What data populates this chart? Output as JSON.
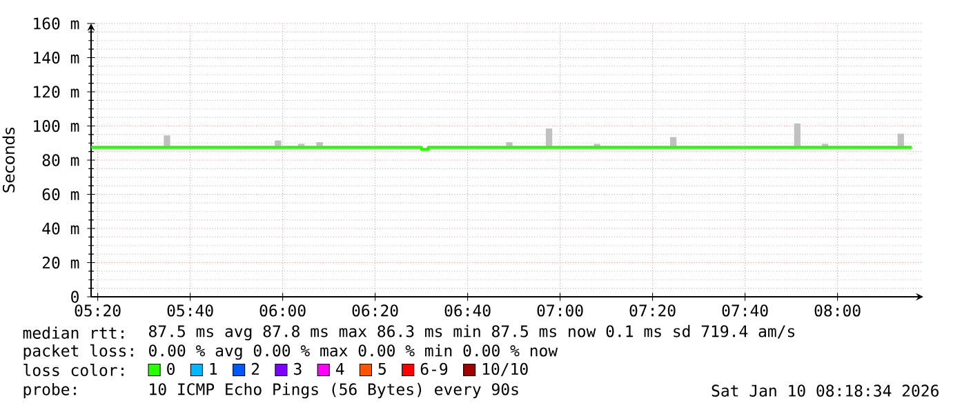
{
  "chart_data": {
    "type": "step",
    "ylabel": "Seconds",
    "xlim": [
      5.3094,
      8.3094
    ],
    "ylim": [
      0,
      160
    ],
    "xticks": [
      {
        "value": 5.3333,
        "label": "05:20"
      },
      {
        "value": 5.6667,
        "label": "05:40"
      },
      {
        "value": 6,
        "label": "06:00"
      },
      {
        "value": 6.3333,
        "label": "06:20"
      },
      {
        "value": 6.6667,
        "label": "06:40"
      },
      {
        "value": 7,
        "label": "07:00"
      },
      {
        "value": 7.3333,
        "label": "07:20"
      },
      {
        "value": 7.6667,
        "label": "07:40"
      },
      {
        "value": 8,
        "label": "08:00"
      }
    ],
    "yticks": [
      0,
      {
        "value": 20,
        "label": "20 m"
      },
      {
        "value": 40,
        "label": "40 m"
      },
      {
        "value": 60,
        "label": "60 m"
      },
      {
        "value": 80,
        "label": "80 m"
      },
      {
        "value": 100,
        "label": "100 m"
      },
      {
        "value": 120,
        "label": "120 m"
      },
      {
        "value": 140,
        "label": "140 m"
      },
      {
        "value": 160,
        "label": "160 m"
      }
    ],
    "grid": true,
    "legend": "bottom",
    "legend_title": "loss color:",
    "series": [
      {
        "type": "bar",
        "color": "#c0c0c0",
        "x": [
          5.583,
          5.983,
          6.067,
          6.133,
          6.817,
          6.96,
          7.133,
          7.408,
          7.855,
          7.955,
          8.228
        ],
        "base": [
          87.5,
          87.5,
          87.5,
          87.5,
          87.5,
          87.5,
          87.5,
          87.5,
          87.5,
          87.5,
          87.5
        ],
        "values": [
          7,
          4,
          2,
          3,
          3,
          11,
          2,
          6,
          14,
          2,
          8
        ]
      },
      {
        "name": "0",
        "color": "#26ff00",
        "x": [
          5.31,
          6.5,
          6.525,
          8.267
        ],
        "values": [
          87.5,
          86.3,
          87.5,
          87.5
        ]
      },
      {
        "name": "1",
        "color": "#00b8ff",
        "values": [
          null
        ]
      },
      {
        "name": "2",
        "color": "#0059ff",
        "values": [
          null
        ]
      },
      {
        "name": "3",
        "color": "#7e00ff",
        "values": [
          null
        ]
      },
      {
        "name": "4",
        "color": "#ff00ff",
        "values": [
          null
        ]
      },
      {
        "name": "5",
        "color": "#ff5500",
        "values": [
          null
        ]
      },
      {
        "name": "6-9",
        "color": "#ff0000",
        "values": [
          null
        ]
      },
      {
        "name": "10/10",
        "color": "#a10000",
        "values": [
          null
        ]
      }
    ],
    "annotations": [
      "median rtt:",
      "87.5 ms avg  87.8 ms max  86.3 ms min  87.5 ms now  0.1 ms sd  719.4   am/s",
      "packet loss:",
      "0.00 % avg  0.00 % max  0.00 % min  0.00 % now",
      "probe:",
      "10 ICMP Echo Pings (56 Bytes) every 90s",
      "Sat Jan 10 08:18:34 2026"
    ]
  }
}
